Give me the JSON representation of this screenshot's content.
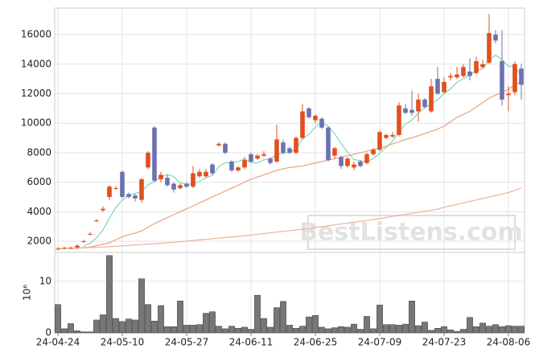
{
  "chart_data": {
    "type": "candlestick",
    "categories": [
      "24-04-24",
      null,
      null,
      null,
      null,
      null,
      null,
      null,
      null,
      null,
      "24-05-10",
      null,
      null,
      null,
      null,
      null,
      null,
      null,
      null,
      null,
      "24-05-27",
      null,
      null,
      null,
      null,
      null,
      null,
      null,
      null,
      null,
      "24-06-11",
      null,
      null,
      null,
      null,
      null,
      null,
      null,
      null,
      null,
      "24-06-25",
      null,
      null,
      null,
      null,
      null,
      null,
      null,
      null,
      null,
      "24-07-09",
      null,
      null,
      null,
      null,
      null,
      null,
      null,
      null,
      null,
      "24-07-23",
      null,
      null,
      null,
      null,
      null,
      null,
      null,
      null,
      null,
      "24-08-06",
      null,
      null
    ],
    "open": [
      1480,
      1520,
      1540,
      1580,
      1950,
      2450,
      3350,
      4100,
      5000,
      5600,
      6700,
      5200,
      5100,
      4800,
      7000,
      9700,
      6200,
      6300,
      5900,
      5600,
      5900,
      5700,
      6400,
      6400,
      7200,
      8500,
      8600,
      7400,
      6800,
      7000,
      7900,
      7600,
      7800,
      7600,
      7400,
      8700,
      8300,
      8000,
      9000,
      11000,
      10200,
      10300,
      9700,
      7800,
      7700,
      7100,
      7000,
      7400,
      7300,
      7900,
      8200,
      9000,
      9100,
      9200,
      11000,
      10900,
      10800,
      11600,
      10800,
      13000,
      12100,
      13100,
      13100,
      13200,
      13500,
      13400,
      13800,
      14100,
      16000,
      14200,
      11900,
      12100,
      13700
    ],
    "high": [
      1600,
      1620,
      1640,
      1800,
      2100,
      2600,
      3500,
      4350,
      5800,
      5750,
      6800,
      5300,
      5200,
      6300,
      8100,
      9800,
      6700,
      6500,
      6000,
      5900,
      6000,
      7100,
      6900,
      6900,
      7300,
      8700,
      8700,
      7500,
      7100,
      7700,
      8000,
      7900,
      8100,
      7700,
      9900,
      8900,
      8400,
      9100,
      11300,
      11100,
      10600,
      10400,
      9800,
      8400,
      7800,
      7700,
      7400,
      7500,
      8000,
      8300,
      9500,
      9300,
      9400,
      11400,
      11300,
      12200,
      12000,
      11700,
      13000,
      13800,
      13100,
      13400,
      13800,
      14000,
      14400,
      14500,
      14300,
      17400,
      16300,
      16300,
      12500,
      14200,
      14000
    ],
    "low": [
      1400,
      1450,
      1470,
      1500,
      1900,
      2400,
      3300,
      4000,
      4800,
      5500,
      4900,
      4900,
      4700,
      4600,
      6900,
      6000,
      6000,
      5700,
      5300,
      5500,
      5600,
      5600,
      6300,
      6300,
      6500,
      8400,
      7900,
      6700,
      6700,
      6900,
      7300,
      7500,
      7700,
      7200,
      7300,
      7900,
      7900,
      7900,
      8900,
      10300,
      10000,
      9600,
      7400,
      7600,
      6900,
      7000,
      6800,
      7000,
      7200,
      7800,
      8100,
      8900,
      9000,
      9100,
      10600,
      10500,
      10100,
      11000,
      10700,
      11900,
      12000,
      12900,
      13000,
      13100,
      12900,
      13300,
      13700,
      14000,
      15400,
      11200,
      10800,
      11900,
      11600
    ],
    "close": [
      1500,
      1550,
      1560,
      1700,
      2000,
      2500,
      3400,
      4200,
      5700,
      5600,
      5000,
      5000,
      4900,
      6200,
      8000,
      6100,
      6500,
      5800,
      5500,
      5800,
      5700,
      6600,
      6700,
      6700,
      6600,
      8600,
      8000,
      6800,
      7000,
      7500,
      7400,
      7800,
      7900,
      7300,
      8900,
      8000,
      8000,
      9000,
      10800,
      10400,
      10500,
      9700,
      7500,
      8300,
      7100,
      7600,
      7200,
      7100,
      7900,
      8200,
      9400,
      9200,
      9200,
      11200,
      10700,
      10700,
      11600,
      11100,
      12500,
      12000,
      12800,
      13200,
      13300,
      13800,
      13200,
      14200,
      14000,
      16100,
      15600,
      11600,
      12000,
      14000,
      12600
    ],
    "up_color": "#e0501e",
    "down_color": "#6c72b0",
    "ylim": [
      1240,
      17800
    ],
    "yticks": [
      2000,
      4000,
      6000,
      8000,
      10000,
      12000,
      14000,
      16000
    ],
    "grid": true,
    "lines": [
      {
        "color": "#7fd6b8",
        "values": [
          null,
          null,
          null,
          null,
          1662,
          1862,
          2232,
          2760,
          3560,
          4280,
          4780,
          5100,
          5240,
          5340,
          5820,
          6040,
          6340,
          6520,
          6380,
          5940,
          5860,
          5880,
          6060,
          6300,
          6460,
          7040,
          7320,
          7340,
          7400,
          7580,
          7340,
          7300,
          7520,
          7580,
          7860,
          7980,
          8020,
          8240,
          8940,
          9240,
          9740,
          10080,
          9780,
          9280,
          8620,
          8040,
          7540,
          7460,
          7380,
          7600,
          7960,
          8360,
          8780,
          9440,
          9940,
          10200,
          10680,
          11060,
          11320,
          11580,
          12000,
          12320,
          12760,
          13020,
          13260,
          13540,
          13700,
          14260,
          14620,
          14300,
          13860,
          13860,
          13160
        ]
      },
      {
        "color": "#e8a27f",
        "values": [
          1500,
          1510,
          1520,
          1540,
          1570,
          1600,
          1700,
          1800,
          1900,
          2100,
          2300,
          2450,
          2550,
          2700,
          2950,
          3200,
          3400,
          3600,
          3800,
          4000,
          4200,
          4400,
          4600,
          4800,
          5000,
          5200,
          5400,
          5600,
          5800,
          6000,
          6200,
          6350,
          6500,
          6650,
          6800,
          6900,
          7000,
          7050,
          7100,
          7200,
          7300,
          7400,
          7500,
          7600,
          7700,
          7800,
          7900,
          8000,
          8100,
          8200,
          8300,
          8450,
          8600,
          8750,
          8900,
          9000,
          9150,
          9300,
          9450,
          9600,
          9800,
          10100,
          10400,
          10600,
          10800,
          11100,
          11400,
          11700,
          11900,
          12100,
          12300,
          12600,
          12800
        ]
      },
      {
        "color": "#eab49a",
        "values": [
          1500,
          1510,
          1520,
          1530,
          1550,
          1570,
          1590,
          1610,
          1630,
          1660,
          1690,
          1720,
          1750,
          1780,
          1810,
          1840,
          1870,
          1900,
          1930,
          1970,
          2010,
          2050,
          2090,
          2130,
          2170,
          2210,
          2250,
          2290,
          2330,
          2370,
          2420,
          2470,
          2520,
          2570,
          2620,
          2670,
          2720,
          2770,
          2820,
          2870,
          2930,
          2990,
          3050,
          3110,
          3170,
          3230,
          3290,
          3350,
          3410,
          3470,
          3540,
          3610,
          3680,
          3750,
          3820,
          3890,
          3960,
          4030,
          4100,
          4170,
          4300,
          4400,
          4500,
          4600,
          4700,
          4800,
          4900,
          5000,
          5100,
          5200,
          5300,
          5450,
          5600
        ]
      }
    ],
    "volume": {
      "color": "#777777",
      "ylim": [
        0,
        15.6
      ],
      "yticks": [
        0,
        10
      ],
      "axis_label": "10⁶",
      "values": [
        5.5,
        0.8,
        1.8,
        0.4,
        0.2,
        0.2,
        2.5,
        3.5,
        15,
        2.8,
        2.2,
        2.7,
        2.5,
        10.5,
        5.5,
        2.3,
        5.3,
        1.2,
        1.2,
        6.2,
        1.5,
        1.5,
        1.6,
        3.8,
        4.1,
        1.3,
        0.8,
        1.3,
        0.9,
        1.1,
        0.7,
        7.3,
        2.8,
        1.1,
        4.9,
        6.1,
        1.5,
        0.9,
        1.3,
        3.1,
        3.4,
        1.1,
        0.8,
        1.0,
        1.2,
        1.1,
        1.7,
        0.7,
        3.2,
        0.8,
        5.4,
        1.6,
        1.6,
        1.5,
        1.7,
        6.2,
        1.4,
        2.1,
        0.5,
        0.9,
        1.2,
        0.6,
        0.3,
        0.7,
        3.0,
        1.2,
        1.9,
        1.3,
        1.6,
        1.2,
        1.4,
        1.3,
        1.3
      ]
    },
    "watermark": "BestListens.com"
  }
}
